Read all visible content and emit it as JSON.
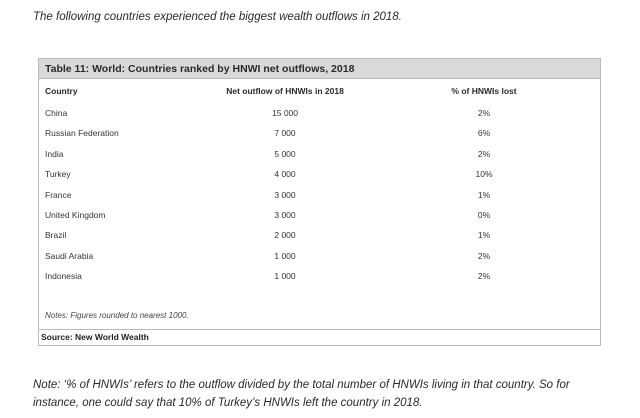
{
  "intro": "The following countries experienced the biggest wealth outflows in 2018.",
  "table": {
    "title": "Table 11: World: Countries ranked by HNWI net outflows, 2018",
    "headers": {
      "country": "Country",
      "outflow": "Net outflow of HNWIs in 2018",
      "pct": "% of HNWIs lost"
    },
    "rows": [
      {
        "country": "China",
        "outflow": "15 000",
        "pct": "2%"
      },
      {
        "country": "Russian Federation",
        "outflow": "7 000",
        "pct": "6%"
      },
      {
        "country": "India",
        "outflow": "5 000",
        "pct": "2%"
      },
      {
        "country": "Turkey",
        "outflow": "4 000",
        "pct": "10%"
      },
      {
        "country": "France",
        "outflow": "3 000",
        "pct": "1%"
      },
      {
        "country": "United Kingdom",
        "outflow": "3 000",
        "pct": "0%"
      },
      {
        "country": "Brazil",
        "outflow": "2 000",
        "pct": "1%"
      },
      {
        "country": "Saudi Arabia",
        "outflow": "1 000",
        "pct": "2%"
      },
      {
        "country": "Indonesia",
        "outflow": "1 000",
        "pct": "2%"
      }
    ],
    "notes": "Notes: Figures rounded to nearest 1000.",
    "source": "Source: New World Wealth"
  },
  "footnote": {
    "line1": "Note: ‘% of HNWIs’ refers to the outflow divided by the total number of HNWIs living in that country. So for",
    "line2": "instance, one could say that 10% of Turkey’s HNWIs left the country in 2018."
  }
}
